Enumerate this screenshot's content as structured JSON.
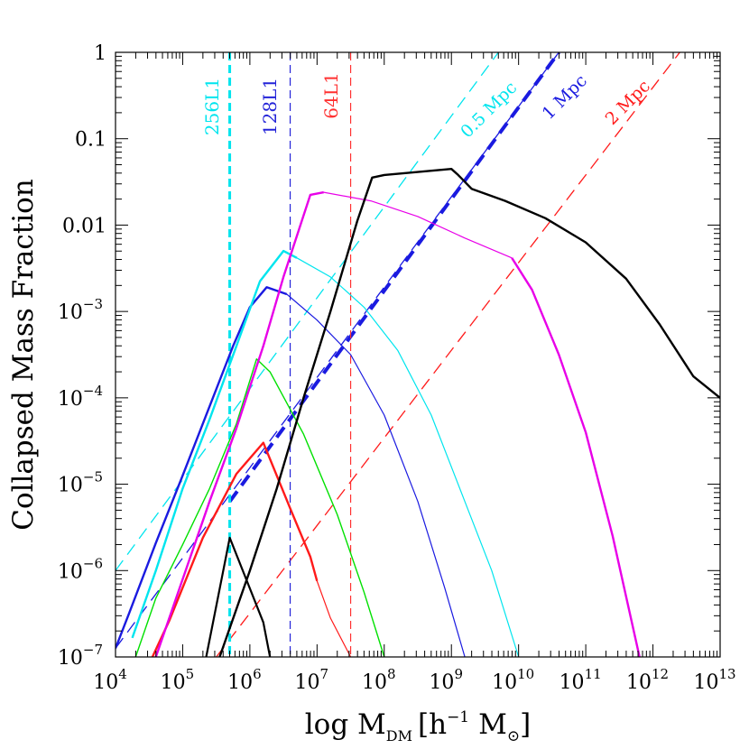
{
  "chart_data": {
    "type": "line",
    "xlabel_main": "log M",
    "xlabel_sub": "DM",
    "xlabel_unit_open": "[h",
    "xlabel_unit_exp": "−1",
    "xlabel_unit_close": "M",
    "xlabel_unit_sun": "⊙",
    "xlabel_unit_end": "]",
    "ylabel": "Collapsed Mass Fraction",
    "x_log_range": [
      4,
      13
    ],
    "y_log_range": [
      -7,
      0
    ],
    "x_ticks": [
      {
        "base": "10",
        "exp": "4"
      },
      {
        "base": "10",
        "exp": "5"
      },
      {
        "base": "10",
        "exp": "6"
      },
      {
        "base": "10",
        "exp": "7"
      },
      {
        "base": "10",
        "exp": "8"
      },
      {
        "base": "10",
        "exp": "9"
      },
      {
        "base": "10",
        "exp": "10"
      },
      {
        "base": "10",
        "exp": "11"
      },
      {
        "base": "10",
        "exp": "12"
      },
      {
        "base": "10",
        "exp": "13"
      }
    ],
    "y_ticks": [
      {
        "base": "10",
        "exp": "−7"
      },
      {
        "base": "10",
        "exp": "−6"
      },
      {
        "base": "10",
        "exp": "−5"
      },
      {
        "base": "10",
        "exp": "−4"
      },
      {
        "base": "10",
        "exp": "−3"
      },
      {
        "base": "0.01",
        "exp": ""
      },
      {
        "base": "0.1",
        "exp": ""
      },
      {
        "base": "1",
        "exp": ""
      }
    ],
    "vertical_lines": [
      {
        "label": "256L1",
        "log_x": 5.7,
        "color": "#00e5ee",
        "width": 3
      },
      {
        "label": "128L1",
        "log_x": 6.6,
        "color": "#2323d8",
        "width": 1.2
      },
      {
        "label": "64L1",
        "log_x": 7.5,
        "color": "#ff3030",
        "width": 1.2
      }
    ],
    "diagonal_lines": [
      {
        "label": "0.5 Mpc",
        "color": "#00e5ee",
        "width": 1.3,
        "dash": "14,8",
        "points": [
          [
            4,
            -6.0
          ],
          [
            9.7,
            0
          ]
        ]
      },
      {
        "label": "1 Mpc",
        "color": "#1a1ae0",
        "width": 1.3,
        "dash": "14,8",
        "points": [
          [
            4,
            -6.9
          ],
          [
            10.6,
            0
          ]
        ]
      },
      {
        "label": "1 Mpc",
        "color": "#1a1ae0",
        "width": 4,
        "dash": "14,8",
        "points": [
          [
            5.7,
            -5.2
          ],
          [
            10.6,
            0
          ]
        ]
      },
      {
        "label": "2 Mpc",
        "color": "#ff1a1a",
        "width": 1.3,
        "dash": "14,8",
        "points": [
          [
            5.5,
            -7.0
          ],
          [
            12.4,
            0
          ]
        ]
      }
    ],
    "diagonal_labels": [
      {
        "label": "0.5 Mpc",
        "color": "#00e5ee"
      },
      {
        "label": "1 Mpc",
        "color": "#1a1ae0"
      },
      {
        "label": "2 Mpc",
        "color": "#ff1a1a"
      }
    ],
    "series": [
      {
        "color": "#000000",
        "width": 2.2,
        "points": [
          [
            5.35,
            -7.0
          ],
          [
            5.7,
            -5.62
          ],
          [
            6.2,
            -6.6
          ],
          [
            6.3,
            -7.0
          ]
        ]
      },
      {
        "color": "#ff1a1a",
        "width": 2.4,
        "points": [
          [
            4.55,
            -7.0
          ],
          [
            4.8,
            -6.58
          ],
          [
            5.3,
            -5.62
          ],
          [
            5.8,
            -4.88
          ],
          [
            6.2,
            -4.52
          ],
          [
            6.6,
            -5.28
          ],
          [
            6.9,
            -5.84
          ],
          [
            7.0,
            -6.12
          ]
        ]
      },
      {
        "color": "#ff1a1a",
        "width": 1.2,
        "points": [
          [
            7.0,
            -6.12
          ],
          [
            7.2,
            -6.55
          ],
          [
            7.5,
            -7.0
          ]
        ]
      },
      {
        "color": "#00e000",
        "width": 1.4,
        "points": [
          [
            4.3,
            -7.0
          ],
          [
            4.6,
            -6.32
          ],
          [
            5.0,
            -5.7
          ],
          [
            5.4,
            -5.05
          ],
          [
            5.8,
            -4.3
          ],
          [
            6.1,
            -3.55
          ],
          [
            6.3,
            -3.7
          ],
          [
            6.8,
            -4.42
          ],
          [
            7.3,
            -5.35
          ],
          [
            7.7,
            -6.25
          ],
          [
            8.0,
            -7.0
          ]
        ]
      },
      {
        "color": "#1a1ae0",
        "width": 2.4,
        "points": [
          [
            4.0,
            -6.9
          ],
          [
            4.2,
            -6.5
          ],
          [
            4.6,
            -5.68
          ],
          [
            5.0,
            -4.9
          ],
          [
            5.4,
            -4.1
          ],
          [
            5.75,
            -3.4
          ],
          [
            6.0,
            -2.95
          ],
          [
            6.25,
            -2.72
          ],
          [
            6.55,
            -2.8
          ]
        ]
      },
      {
        "color": "#1a1ae0",
        "width": 1.2,
        "points": [
          [
            6.55,
            -2.8
          ],
          [
            7.0,
            -3.1
          ],
          [
            7.5,
            -3.5
          ],
          [
            8.0,
            -4.2
          ],
          [
            8.5,
            -5.2
          ],
          [
            8.9,
            -6.2
          ],
          [
            9.2,
            -7.0
          ]
        ]
      },
      {
        "color": "#00e5ee",
        "width": 2.4,
        "points": [
          [
            4.25,
            -6.78
          ],
          [
            4.6,
            -6.0
          ],
          [
            5.0,
            -5.05
          ],
          [
            5.4,
            -4.25
          ],
          [
            5.8,
            -3.4
          ],
          [
            6.15,
            -2.65
          ],
          [
            6.5,
            -2.3
          ],
          [
            6.7,
            -2.38
          ]
        ]
      },
      {
        "color": "#00e5ee",
        "width": 1.2,
        "points": [
          [
            6.7,
            -2.38
          ],
          [
            7.2,
            -2.6
          ],
          [
            7.7,
            -2.95
          ],
          [
            8.2,
            -3.45
          ],
          [
            8.7,
            -4.2
          ],
          [
            9.2,
            -5.2
          ],
          [
            9.6,
            -6.0
          ],
          [
            10.0,
            -7.0
          ]
        ]
      },
      {
        "color": "#e800e8",
        "width": 2.4,
        "points": [
          [
            4.6,
            -7.0
          ],
          [
            5.0,
            -6.1
          ],
          [
            5.4,
            -5.2
          ],
          [
            5.8,
            -4.35
          ],
          [
            6.2,
            -3.4
          ],
          [
            6.5,
            -2.6
          ],
          [
            6.9,
            -1.65
          ],
          [
            7.1,
            -1.62
          ]
        ]
      },
      {
        "color": "#e800e8",
        "width": 1.2,
        "points": [
          [
            7.1,
            -1.62
          ],
          [
            7.8,
            -1.72
          ],
          [
            8.5,
            -1.9
          ],
          [
            9.2,
            -2.15
          ],
          [
            9.9,
            -2.38
          ]
        ]
      },
      {
        "color": "#e800e8",
        "width": 2.4,
        "points": [
          [
            9.9,
            -2.38
          ],
          [
            10.2,
            -2.75
          ],
          [
            10.6,
            -3.5
          ],
          [
            11.0,
            -4.4
          ],
          [
            11.4,
            -5.6
          ],
          [
            11.8,
            -7.0
          ]
        ]
      },
      {
        "color": "#000000",
        "width": 2.4,
        "points": [
          [
            5.55,
            -7.0
          ],
          [
            6.0,
            -6.0
          ],
          [
            6.4,
            -5.05
          ],
          [
            6.8,
            -4.0
          ],
          [
            7.2,
            -3.0
          ],
          [
            7.6,
            -1.95
          ],
          [
            7.82,
            -1.45
          ],
          [
            8.0,
            -1.42
          ],
          [
            9.0,
            -1.35
          ],
          [
            9.1,
            -1.42
          ],
          [
            9.3,
            -1.58
          ],
          [
            9.8,
            -1.72
          ],
          [
            10.4,
            -1.92
          ],
          [
            11.0,
            -2.2
          ],
          [
            11.6,
            -2.62
          ],
          [
            12.1,
            -3.15
          ],
          [
            12.6,
            -3.75
          ],
          [
            13.0,
            -4.0
          ]
        ]
      }
    ]
  }
}
